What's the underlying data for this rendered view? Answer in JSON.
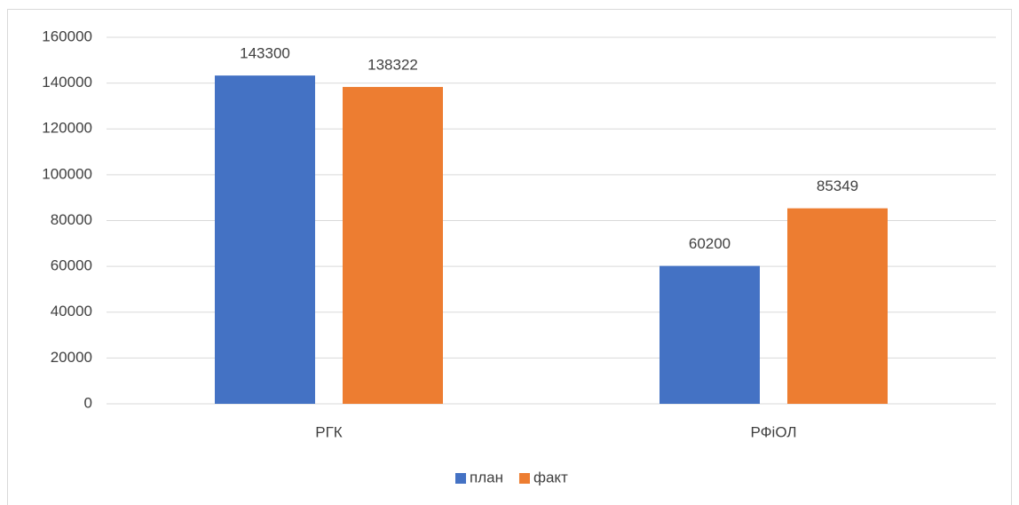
{
  "chart_data": {
    "type": "bar",
    "categories": [
      "РГК",
      "РФіОЛ"
    ],
    "series": [
      {
        "name": "план",
        "color": "#4472c4",
        "values": [
          143300,
          60200
        ]
      },
      {
        "name": "факт",
        "color": "#ed7d31",
        "values": [
          138322,
          85349
        ]
      }
    ],
    "ylim": [
      0,
      160000
    ],
    "yticks": [
      0,
      20000,
      40000,
      60000,
      80000,
      100000,
      120000,
      140000,
      160000
    ],
    "grid": true,
    "legend": "bottom",
    "data_labels": true
  }
}
